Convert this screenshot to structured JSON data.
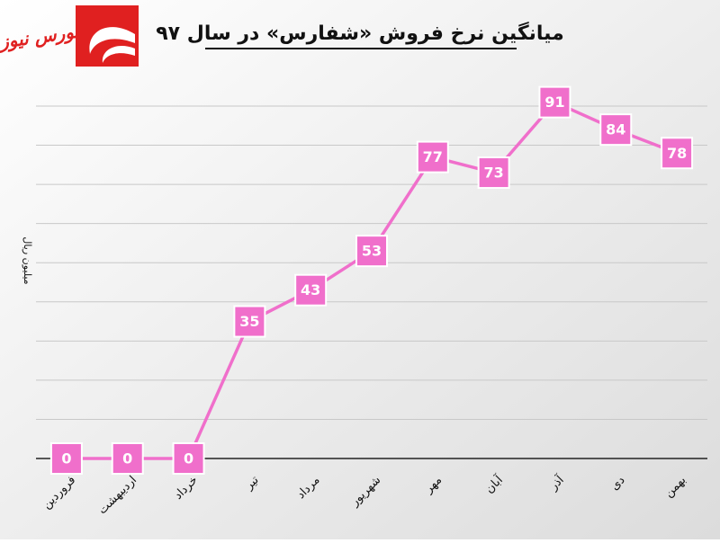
{
  "chart_data": {
    "type": "line",
    "title": "میانگین نرخ فروش «شفارس» در سال ۹۷",
    "brand": "بورس نیوز",
    "y_label": "میلیون ریال",
    "categories": [
      "فروردین",
      "اردیبهشت",
      "خرداد",
      "تیر",
      "مرداد",
      "شهریور",
      "مهر",
      "آبان",
      "آذر",
      "دی",
      "بهمن"
    ],
    "values": [
      0,
      0,
      0,
      35,
      43,
      53,
      77,
      73,
      91,
      84,
      78
    ],
    "color": "#f06fcb",
    "ylim": [
      0,
      90
    ],
    "yticks": [
      0,
      10,
      20,
      30,
      40,
      50,
      60,
      70,
      80,
      90
    ],
    "grid": true
  }
}
